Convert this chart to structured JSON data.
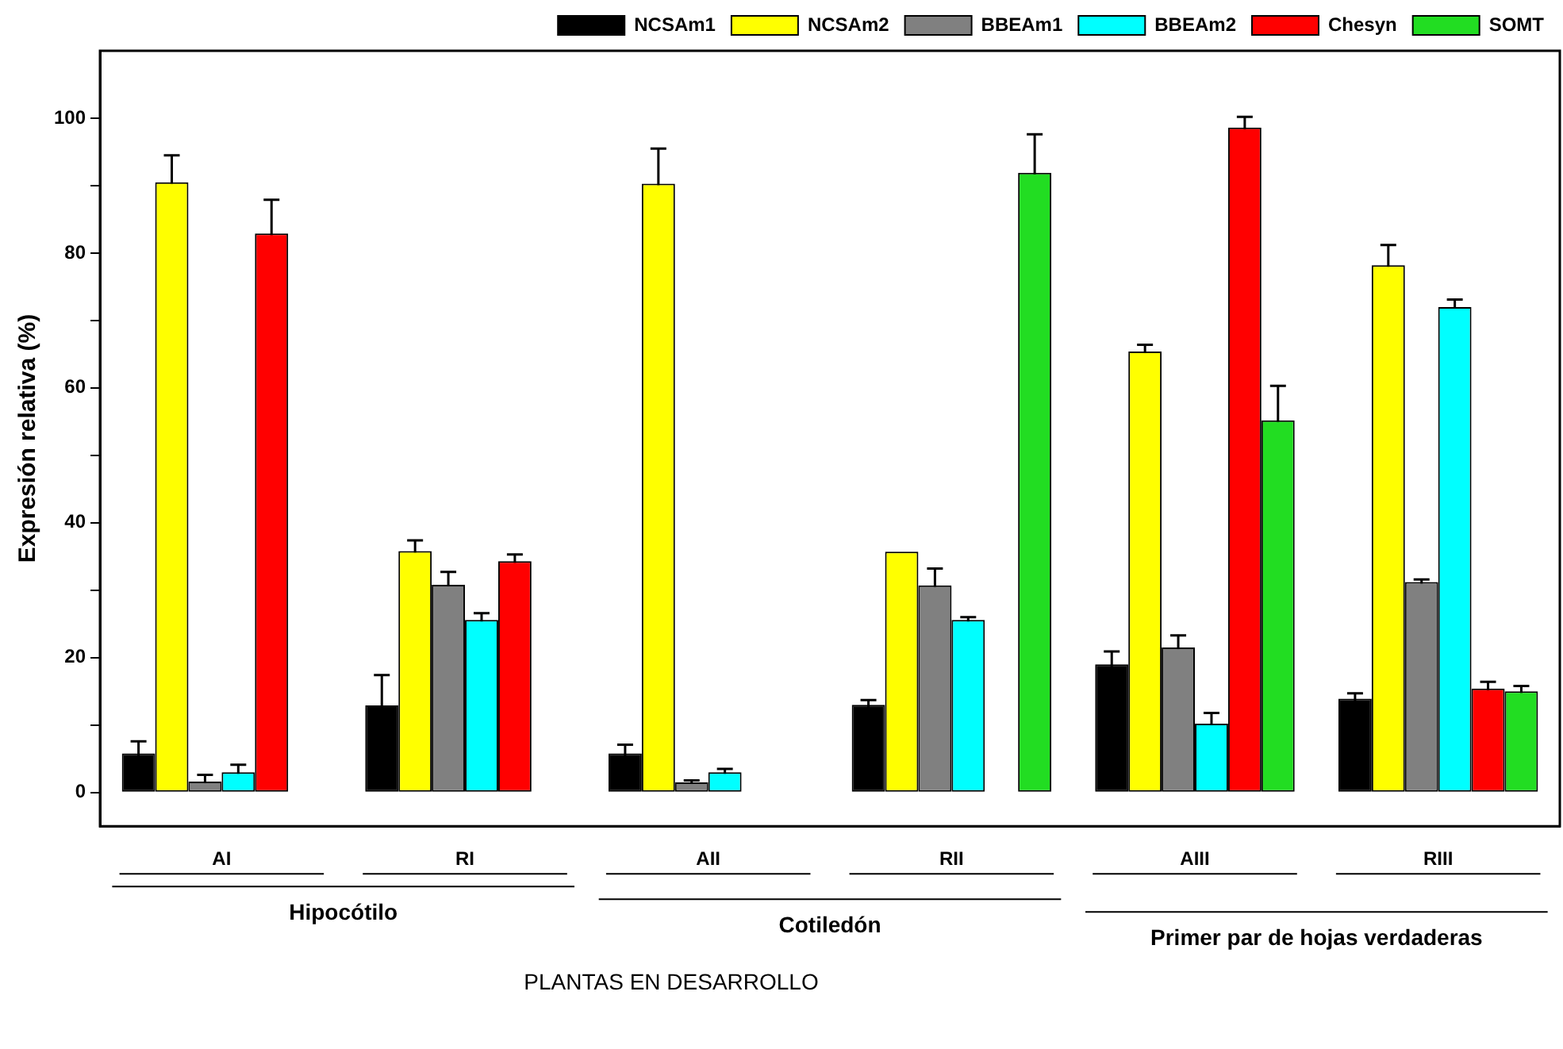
{
  "chart_data": {
    "type": "bar",
    "ylabel": "Expresión relativa (%)",
    "xlabel": "PLANTAS EN DESARROLLO",
    "categories": [
      "AI",
      "RI",
      "AII",
      "RII",
      "AIII",
      "RIII"
    ],
    "annotations": [
      "Hipocótilo",
      "Cotiledón",
      "Primer par de hojas verdaderas"
    ],
    "series": [
      {
        "name": "NCSAm1",
        "color": "#000000",
        "values": [
          5.8,
          12.9,
          5.8,
          13,
          19,
          13.9
        ],
        "errors": [
          1.8,
          4.5,
          1.3,
          0.7,
          1.9,
          0.8
        ]
      },
      {
        "name": "NCSAm2",
        "color": "#ffff00",
        "values": [
          90.5,
          35.8,
          90.3,
          35.7,
          65.4,
          78.2
        ],
        "errors": [
          4,
          1.6,
          5.2,
          null,
          1,
          3
        ]
      },
      {
        "name": "BBEAm1",
        "color": "#808080",
        "values": [
          1.6,
          30.8,
          1.5,
          30.7,
          21.5,
          31.2
        ],
        "errors": [
          1,
          1.9,
          0.3,
          2.5,
          1.8,
          0.4
        ]
      },
      {
        "name": "BBEAm2",
        "color": "#00ffff",
        "values": [
          3,
          25.6,
          3,
          25.6,
          10.2,
          72
        ],
        "errors": [
          1.1,
          1,
          0.5,
          0.4,
          1.6,
          1.1
        ]
      },
      {
        "name": "Chesyn",
        "color": "#ff0000",
        "values": [
          82.9,
          34.3,
          0,
          0,
          98.6,
          15.4
        ],
        "errors": [
          5,
          1,
          null,
          null,
          1.6,
          1
        ]
      },
      {
        "name": "SOMT",
        "color": "#22dd22",
        "values": [
          0,
          0,
          0,
          91.9,
          55.2,
          15
        ],
        "errors": [
          null,
          null,
          null,
          5.7,
          5.1,
          0.8
        ]
      }
    ],
    "ylim": [
      -5,
      110
    ],
    "yticks": [
      0,
      {
        "value": 10,
        "label": null
      },
      20,
      {
        "value": 30,
        "label": null
      },
      40,
      {
        "value": 50,
        "label": null
      },
      60,
      {
        "value": 70,
        "label": null
      },
      80,
      {
        "value": 90,
        "label": null
      },
      100
    ],
    "grid": false,
    "legend": "top"
  }
}
